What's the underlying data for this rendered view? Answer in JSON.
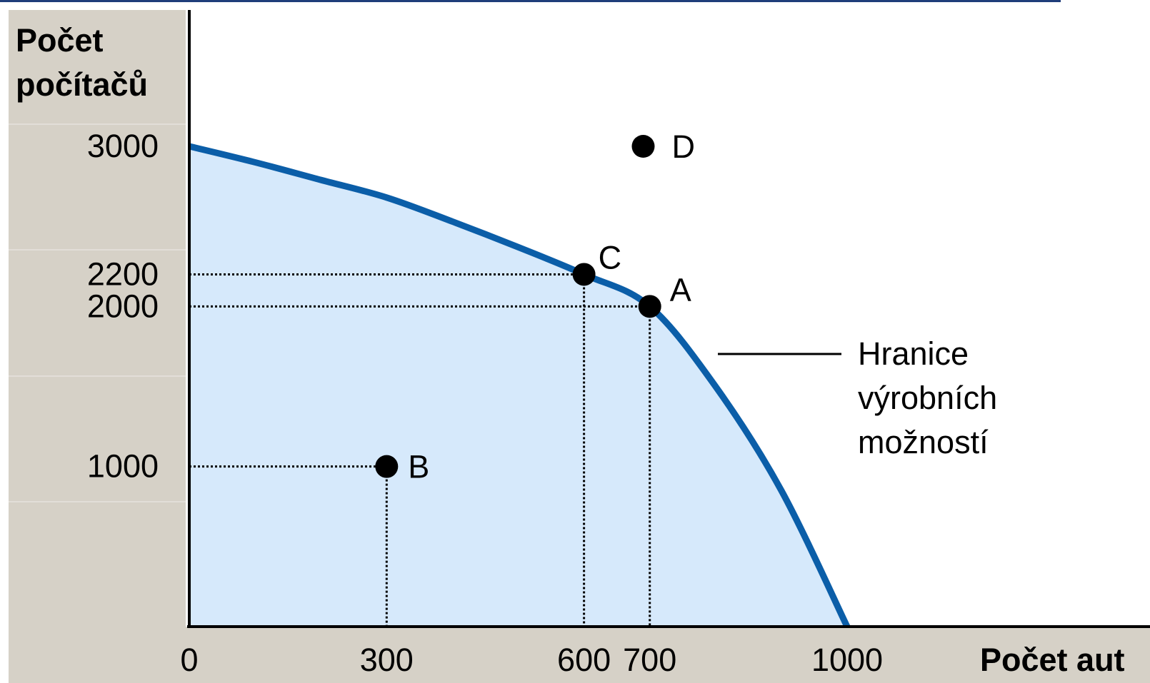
{
  "chart_data": {
    "type": "line",
    "title": "",
    "ylabel_lines": [
      "Počet",
      "počítačů"
    ],
    "xlabel": "Počet aut",
    "x_ticks": [
      0,
      300,
      600,
      700,
      1000
    ],
    "y_ticks": [
      1000,
      2000,
      2200,
      3000
    ],
    "xlim": [
      0,
      1100
    ],
    "ylim": [
      0,
      3000
    ],
    "grid": false,
    "series": [
      {
        "x": [
          0,
          100,
          200,
          300,
          400,
          500,
          600,
          700,
          800,
          900,
          1000
        ],
        "y": [
          3000,
          2900,
          2790,
          2680,
          2530,
          2370,
          2200,
          2000,
          1500,
          850,
          0
        ]
      }
    ],
    "points": [
      {
        "label": "A",
        "x": 700,
        "y": 2000,
        "guides": true
      },
      {
        "label": "B",
        "x": 300,
        "y": 1000,
        "guides": true
      },
      {
        "label": "C",
        "x": 600,
        "y": 2200,
        "guides": true
      },
      {
        "label": "D",
        "x": 690,
        "y": 3000,
        "guides": false
      }
    ],
    "annotation_lines": [
      "Hranice",
      "výrobních",
      "možností"
    ]
  },
  "colors": {
    "curve": "#0b5ea8",
    "fill": "#d6e9fb",
    "band": "#d6d1c7",
    "top_rule": "#1f3d7a",
    "point": "#000000"
  }
}
